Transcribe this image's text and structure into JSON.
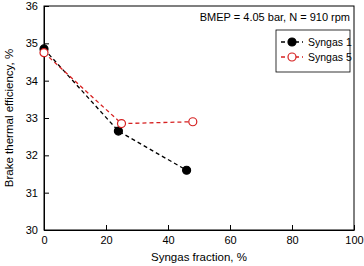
{
  "chart_data": {
    "type": "line",
    "x_label": "Syngas fraction, %",
    "y_label": "Brake thermal efficiency, %",
    "annotations": [
      "BMEP = 4.05 bar, N = 910 rpm"
    ],
    "xlim": [
      0,
      100
    ],
    "xticks": [
      0,
      20,
      40,
      60,
      80,
      100
    ],
    "ylim": [
      30,
      36
    ],
    "yticks": [
      30,
      31,
      32,
      33,
      34,
      35,
      36
    ],
    "legend": "upper right",
    "grid": false,
    "series": [
      {
        "name": "Syngas 1",
        "color": "#000000",
        "marker": "circle",
        "line_style": "dashed",
        "x": [
          0,
          24,
          46
        ],
        "values": [
          34.85,
          32.65,
          31.6
        ]
      },
      {
        "name": "Syngas 5",
        "color": "#d62020",
        "marker": "open-circle",
        "line_style": "dashed",
        "x": [
          0,
          25,
          48
        ],
        "values": [
          34.75,
          32.85,
          32.9
        ]
      }
    ]
  }
}
